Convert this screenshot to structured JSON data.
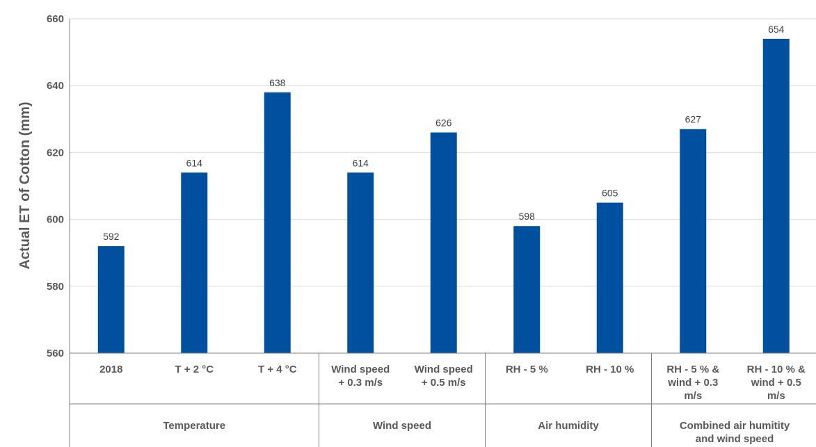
{
  "chart_data": {
    "type": "bar",
    "ylabel": "Actual ET of Cotton (mm)",
    "xlabel": "",
    "ylim": [
      560,
      660
    ],
    "yticks": [
      560,
      580,
      600,
      620,
      640,
      660
    ],
    "grid": true,
    "bar_color": "#0050A0",
    "categories": [
      [
        "2018"
      ],
      [
        "T + 2 °C"
      ],
      [
        "T + 4 °C"
      ],
      [
        "Wind speed",
        "+ 0.3 m/s"
      ],
      [
        "Wind speed",
        "+ 0.5 m/s"
      ],
      [
        "RH - 5 %"
      ],
      [
        "RH - 10 %"
      ],
      [
        "RH - 5 % &",
        "wind + 0.3",
        "m/s"
      ],
      [
        "RH - 10 % &",
        "wind + 0.5",
        "m/s"
      ]
    ],
    "values": [
      592,
      614,
      638,
      614,
      626,
      598,
      605,
      627,
      654
    ],
    "groups": [
      {
        "name": [
          "Temperature"
        ],
        "start": 0,
        "end": 2
      },
      {
        "name": [
          "Wind speed"
        ],
        "start": 3,
        "end": 4
      },
      {
        "name": [
          "Air humidity"
        ],
        "start": 5,
        "end": 6
      },
      {
        "name": [
          "Combined air humitity",
          "and wind speed"
        ],
        "start": 7,
        "end": 8
      }
    ]
  }
}
